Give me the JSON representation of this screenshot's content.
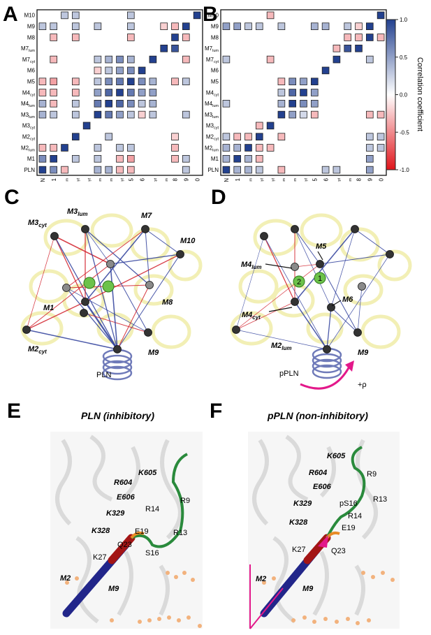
{
  "panels": {
    "A": "A",
    "B": "B",
    "C": "C",
    "D": "D",
    "E": "E",
    "F": "F"
  },
  "colorbar": {
    "label": "Correlation coefficient",
    "ticks": [
      "1.0",
      "0.5",
      "0.0",
      "-0.5",
      "-1.0"
    ],
    "colors": {
      "positive": "#23418f",
      "zero": "#ffffff",
      "negative": "#e0151b"
    }
  },
  "chart_data": [
    {
      "type": "heatmap",
      "panel": "A",
      "rows_top_to_bottom": [
        "M10",
        "M9",
        "M8",
        "M7lum",
        "M7cyt",
        "M6",
        "M5",
        "M4cyt",
        "M4lum",
        "M3lum",
        "M3cyt",
        "M2cyt",
        "M2lum",
        "M1",
        "PLN"
      ],
      "columns": [
        "PLN",
        "M1",
        "M2lum",
        "M2cyt",
        "M3cyt",
        "M3lum",
        "M4lum",
        "M4cyt",
        "M5",
        "M6",
        "M7cyt",
        "M7lum",
        "M8",
        "M9",
        "M10"
      ],
      "value_range": [
        -1,
        1
      ],
      "values": [
        [
          0,
          0,
          0.3,
          0.3,
          0,
          0,
          0,
          0,
          0.3,
          0,
          0,
          0,
          0,
          0,
          1
        ],
        [
          0.3,
          0.3,
          0,
          0.3,
          0,
          0.3,
          0,
          0,
          0.3,
          0,
          0,
          -0.2,
          -0.3,
          1,
          0
        ],
        [
          0,
          -0.3,
          0,
          -0.3,
          0,
          0,
          0,
          0,
          -0.3,
          0,
          0,
          0,
          1,
          -0.3,
          0
        ],
        [
          0,
          0,
          0,
          0,
          0,
          0,
          0,
          0,
          0,
          0,
          0,
          1,
          0.9,
          0,
          0
        ],
        [
          0,
          -0.3,
          0,
          0,
          0,
          0.3,
          0.4,
          0.6,
          0.4,
          0,
          1,
          0,
          0,
          -0.3,
          0
        ],
        [
          0,
          0,
          0,
          0,
          0,
          -0.2,
          0.3,
          0.5,
          0.6,
          1,
          0,
          0,
          0,
          0,
          0
        ],
        [
          -0.3,
          -0.4,
          0,
          -0.3,
          0,
          0.3,
          0.6,
          0.7,
          1,
          0.6,
          0.4,
          0,
          -0.3,
          0.3,
          0
        ],
        [
          -0.3,
          -0.3,
          0,
          -0.3,
          0,
          0.5,
          0.8,
          1,
          0.7,
          0.5,
          0.5,
          0,
          0,
          0,
          0
        ],
        [
          0.4,
          -0.3,
          0,
          0.3,
          0,
          0.7,
          1,
          0.8,
          0.6,
          0.3,
          0.4,
          0,
          0,
          0,
          0
        ],
        [
          0.4,
          0.3,
          0,
          0.3,
          0,
          1,
          0.7,
          0.5,
          0.3,
          -0.2,
          0.3,
          0,
          0,
          0.3,
          0
        ],
        [
          0,
          0,
          0,
          0,
          1,
          0,
          0,
          0,
          0,
          0,
          0,
          0,
          0,
          0,
          0
        ],
        [
          0,
          0,
          0,
          1,
          0,
          0,
          0.3,
          0,
          0,
          0,
          0,
          0,
          -0.2,
          0,
          0
        ],
        [
          -0.3,
          -0.3,
          1,
          0,
          0,
          0.3,
          0,
          0.3,
          0.3,
          0,
          0,
          0,
          -0.3,
          0,
          0
        ],
        [
          0.6,
          1,
          0,
          0.3,
          0,
          0.3,
          0,
          -0.3,
          -0.4,
          0,
          0,
          0,
          -0.3,
          0.3,
          0
        ],
        [
          1,
          0.6,
          -0.3,
          0,
          0,
          0.4,
          0.4,
          -0.3,
          -0.3,
          0,
          0,
          0,
          0,
          0.3,
          0
        ]
      ]
    },
    {
      "type": "heatmap",
      "panel": "B",
      "rows_top_to_bottom": [
        "M10",
        "M9",
        "M8",
        "M7lum",
        "M7cyt",
        "M6",
        "M5",
        "M4cyt",
        "M4lum",
        "M3lum",
        "M3cyt",
        "M2cyt",
        "M2lum",
        "M1",
        "PLN"
      ],
      "columns": [
        "PLN",
        "M1",
        "M2lum",
        "M2cyt",
        "M3cyt",
        "M3lum",
        "M4lum",
        "M4cyt",
        "M5",
        "M6",
        "M7cyt",
        "M7lum",
        "M8",
        "M9",
        "M10"
      ],
      "value_range": [
        -1,
        1
      ],
      "values": [
        [
          0,
          0,
          0,
          0,
          -0.3,
          0,
          0,
          0,
          0,
          0,
          0,
          0,
          0,
          0,
          1
        ],
        [
          0.5,
          0.5,
          0.3,
          0.3,
          0,
          0.3,
          0,
          0,
          0.4,
          0.4,
          0,
          0.3,
          -0.2,
          1,
          0
        ],
        [
          0,
          0,
          0,
          0,
          0,
          0,
          0,
          0,
          0,
          0,
          0,
          -0.3,
          -0.3,
          1,
          -0.3
        ],
        [
          0,
          0,
          0,
          0,
          0,
          0,
          0,
          0,
          0,
          0,
          -0.3,
          0.9,
          1,
          0,
          0
        ],
        [
          0.3,
          0,
          0,
          0,
          -0.3,
          0,
          0,
          0,
          0,
          0,
          1,
          0,
          0,
          0.3,
          0
        ],
        [
          0,
          0,
          0,
          0,
          0,
          0,
          0,
          0,
          0,
          1,
          0,
          0,
          0,
          0,
          0
        ],
        [
          0,
          0,
          0,
          0,
          0,
          -0.3,
          0.6,
          0.5,
          1,
          0,
          0,
          0,
          0,
          0,
          0
        ],
        [
          0,
          0,
          0,
          0,
          0,
          0.3,
          0.8,
          1,
          0.5,
          0,
          0,
          0,
          0,
          0,
          0
        ],
        [
          0.3,
          0,
          0,
          0,
          0,
          0.4,
          1,
          0.6,
          0.5,
          0,
          0,
          0,
          0,
          0,
          0
        ],
        [
          0,
          0,
          0,
          0,
          0,
          1,
          0.5,
          0.2,
          -0.3,
          0,
          0,
          0,
          0,
          -0.3,
          -0.3
        ],
        [
          0,
          0,
          0,
          -0.3,
          1,
          0,
          0,
          0,
          0,
          0,
          0,
          0,
          0,
          0,
          0
        ],
        [
          0.3,
          -0.3,
          -0.3,
          1,
          0,
          -0.3,
          0,
          0,
          0,
          0,
          0,
          0,
          0,
          0.3,
          0.3
        ],
        [
          0.4,
          0.4,
          1,
          -0.3,
          -0.3,
          0,
          0,
          0,
          0,
          0,
          0,
          0,
          0,
          0.3,
          0.3
        ],
        [
          0.4,
          1,
          0.4,
          -0.3,
          0,
          0,
          0,
          0,
          0,
          0,
          0,
          0,
          0,
          0.5,
          0
        ],
        [
          1,
          0.4,
          0.4,
          0.3,
          0,
          -0.3,
          0,
          0,
          0,
          0.3,
          0.3,
          0,
          0,
          0.5,
          0
        ]
      ]
    }
  ],
  "axis_labels": {
    "rows": [
      {
        "main": "M10",
        "sub": ""
      },
      {
        "main": "M9",
        "sub": ""
      },
      {
        "main": "M8",
        "sub": ""
      },
      {
        "main": "M7",
        "sub": "lum"
      },
      {
        "main": "M7",
        "sub": "cyt"
      },
      {
        "main": "M6",
        "sub": ""
      },
      {
        "main": "M5",
        "sub": ""
      },
      {
        "main": "M4",
        "sub": "cyt"
      },
      {
        "main": "M4",
        "sub": "lum"
      },
      {
        "main": "M3",
        "sub": "lum"
      },
      {
        "main": "M3",
        "sub": "cyt"
      },
      {
        "main": "M2",
        "sub": "cyt"
      },
      {
        "main": "M2",
        "sub": "lum"
      },
      {
        "main": "M1",
        "sub": ""
      },
      {
        "main": "PLN",
        "sub": ""
      }
    ],
    "cols": [
      {
        "main": "PLN",
        "sub": ""
      },
      {
        "main": "M1",
        "sub": ""
      },
      {
        "main": "M2",
        "sub": "lum"
      },
      {
        "main": "M2",
        "sub": "cyt"
      },
      {
        "main": "M3",
        "sub": "cyt"
      },
      {
        "main": "M3",
        "sub": "lum"
      },
      {
        "main": "M4",
        "sub": "lum"
      },
      {
        "main": "M4",
        "sub": "cyt"
      },
      {
        "main": "M5",
        "sub": ""
      },
      {
        "main": "M6",
        "sub": ""
      },
      {
        "main": "M7",
        "sub": "cyt"
      },
      {
        "main": "M7",
        "sub": "lum"
      },
      {
        "main": "M8",
        "sub": ""
      },
      {
        "main": "M9",
        "sub": ""
      },
      {
        "main": "M10",
        "sub": ""
      }
    ]
  },
  "network_C": {
    "labels": {
      "m3cyt": {
        "main": "M3",
        "sub": "cyt"
      },
      "m3lum": {
        "main": "M3",
        "sub": "lum"
      },
      "m7": {
        "main": "M7",
        "sub": ""
      },
      "m10": {
        "main": "M10",
        "sub": ""
      },
      "m1": {
        "main": "M1",
        "sub": ""
      },
      "m8": {
        "main": "M8",
        "sub": ""
      },
      "m2cyt": {
        "main": "M2",
        "sub": "cyt"
      },
      "m9": {
        "main": "M9",
        "sub": ""
      },
      "pln": {
        "main": "PLN",
        "sub": ""
      }
    }
  },
  "network_D": {
    "labels": {
      "m5": {
        "main": "M5",
        "sub": ""
      },
      "m4lum": {
        "main": "M4",
        "sub": "lum"
      },
      "m6": {
        "main": "M6",
        "sub": ""
      },
      "m4cyt": {
        "main": "M4",
        "sub": "cyt"
      },
      "m2lum": {
        "main": "M2",
        "sub": "lum"
      },
      "m9": {
        "main": "M9",
        "sub": ""
      },
      "ppln": {
        "main": "pPLN",
        "sub": ""
      },
      "site1": "1",
      "site2": "2",
      "rotation": "+ρ"
    }
  },
  "structure_E": {
    "title": "PLN (inhibitory)",
    "residues_bold": [
      "K605",
      "R604",
      "E606",
      "K329",
      "K328"
    ],
    "residues": [
      "R14",
      "R9",
      "E19",
      "Q23",
      "R13",
      "K27",
      "S16"
    ],
    "helices": [
      "M2",
      "M9"
    ]
  },
  "structure_F": {
    "title": "pPLN (non-inhibitory)",
    "residues_bold": [
      "K605",
      "R604",
      "E606",
      "K329",
      "K328"
    ],
    "residues": [
      "R9",
      "pS16",
      "R13",
      "R14",
      "E19",
      "K27",
      "Q23"
    ],
    "helices": [
      "M2",
      "M9"
    ]
  }
}
